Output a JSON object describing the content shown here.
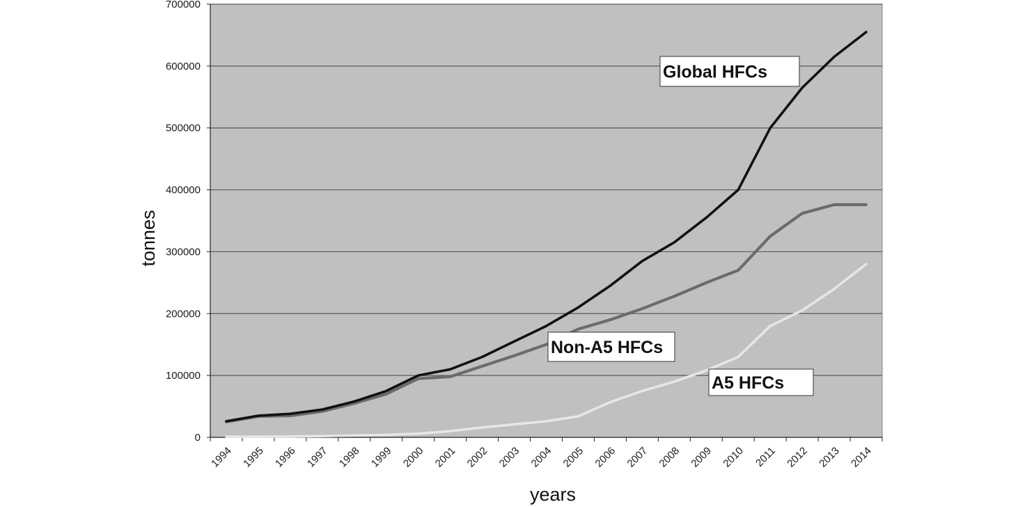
{
  "chart_data": {
    "type": "line",
    "title": "",
    "xlabel": "years",
    "ylabel": "tonnes",
    "x": [
      "1994",
      "1995",
      "1996",
      "1997",
      "1998",
      "1999",
      "2000",
      "2001",
      "2002",
      "2003",
      "2004",
      "2005",
      "2006",
      "2007",
      "2008",
      "2009",
      "2010",
      "2011",
      "2012",
      "2013",
      "2014"
    ],
    "ylim": [
      0,
      700000
    ],
    "yticks": [
      "0",
      "100000",
      "200000",
      "300000",
      "400000",
      "500000",
      "600000",
      "700000"
    ],
    "grid": true,
    "legend": "none",
    "colors": {
      "plot_background": "#c0c0c0",
      "gridline": "#5a5a5a",
      "global": "#111111",
      "non_a5": "#6b6b6b",
      "a5": "#e6e6e6"
    },
    "series": [
      {
        "name": "Global HFCs",
        "values": [
          26000,
          35000,
          38000,
          45000,
          58000,
          75000,
          100000,
          110000,
          130000,
          155000,
          180000,
          210000,
          245000,
          285000,
          315000,
          355000,
          400000,
          500000,
          565000,
          615000,
          655000
        ]
      },
      {
        "name": "Non-A5 HFCs",
        "values": [
          25000,
          34000,
          35000,
          42000,
          55000,
          70000,
          95000,
          98000,
          115000,
          132000,
          150000,
          175000,
          190000,
          208000,
          228000,
          250000,
          270000,
          325000,
          362000,
          376000,
          376000
        ]
      },
      {
        "name": "A5 HFCs",
        "values": [
          1000,
          1000,
          1500,
          2000,
          3000,
          4000,
          6000,
          10000,
          16000,
          21000,
          26000,
          34000,
          57000,
          75000,
          90000,
          108000,
          130000,
          180000,
          205000,
          240000,
          280000
        ]
      }
    ],
    "annotations": [
      {
        "text": "Global HFCs",
        "series": "Global HFCs"
      },
      {
        "text": "Non-A5 HFCs",
        "series": "Non-A5 HFCs"
      },
      {
        "text": "A5 HFCs",
        "series": "A5 HFCs"
      }
    ]
  }
}
